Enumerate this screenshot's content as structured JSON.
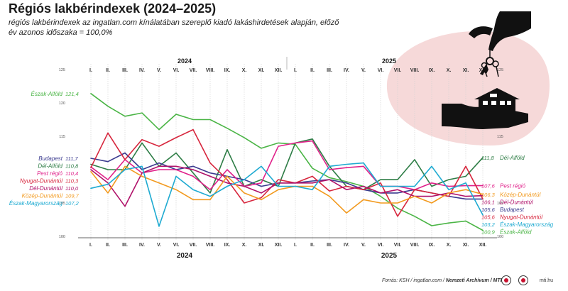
{
  "title": "Régiós lakbérindexek (2024–2025)",
  "subtitle": "régiós lakbérindexek az ingatlan.com kínálatában szereplő kiadó lakáshirdetések alapján, előző év azonos időszaka = 100,0%",
  "footer": {
    "source_prefix": "Forrás: KSH / ingatlan.com / ",
    "source_bold": "Nemzeti Archívum / MTI",
    "site": "mti.hu"
  },
  "colors": {
    "background_blob": "#f6d9d9",
    "grid": "#cccccc",
    "axis": "#333333"
  },
  "icons": [
    "hand-with-keys-icon",
    "hand-holding-house-icon"
  ],
  "chart_data": {
    "type": "line",
    "grid": "vertical",
    "years": [
      "2024",
      "2025"
    ],
    "month_labels": [
      "I.",
      "II.",
      "III.",
      "IV.",
      "V.",
      "VI.",
      "VII.",
      "VIII.",
      "IX.",
      "X.",
      "XI.",
      "XII.",
      "I.",
      "II.",
      "III.",
      "IV.",
      "V.",
      "VI.",
      "VII.",
      "VIII.",
      "IX.",
      "X.",
      "XI.",
      "XII."
    ],
    "y_ticks": [
      {
        "v": 100,
        "label": "100"
      },
      {
        "v": 105,
        "label": "105"
      },
      {
        "v": 115,
        "label": "115"
      },
      {
        "v": 120,
        "label": "120"
      },
      {
        "v": 125,
        "label": "125"
      }
    ],
    "ylim": [
      100,
      125
    ],
    "series": [
      {
        "name": "Észak-Alföld",
        "color": "#4bb546",
        "start_label": "121,4",
        "end_label": "100,9",
        "values": [
          121.4,
          119.5,
          118.0,
          118.5,
          116.0,
          118.3,
          117.5,
          117.5,
          116.2,
          114.8,
          113.2,
          114.0,
          113.8,
          110.2,
          108.8,
          108.2,
          107.5,
          106.0,
          104.2,
          103.0,
          101.6,
          102.0,
          102.3,
          100.9
        ]
      },
      {
        "name": "Dél-Alföld",
        "color": "#2e7d46",
        "start_label": "110,8",
        "end_label": "111,8",
        "values": [
          110.8,
          110.0,
          110.0,
          114.0,
          110.5,
          112.5,
          109.5,
          106.5,
          113.0,
          107.5,
          108.5,
          107.5,
          114.0,
          114.6,
          110.5,
          107.5,
          107.0,
          108.5,
          108.5,
          111.5,
          107.5,
          108.5,
          109.0,
          111.8
        ]
      },
      {
        "name": "Budapest",
        "color": "#3b3b8f",
        "start_label": "111,7",
        "end_label": "105,6",
        "values": [
          111.7,
          111.2,
          112.5,
          110.0,
          111.0,
          110.0,
          110.5,
          109.5,
          109.0,
          108.5,
          107.5,
          108.0,
          108.0,
          108.3,
          108.5,
          108.0,
          107.0,
          106.5,
          106.5,
          107.0,
          106.5,
          106.0,
          105.6,
          105.6
        ]
      },
      {
        "name": "Pest régió",
        "color": "#e0218a",
        "start_label": "110,4",
        "end_label": "107,6",
        "values": [
          110.4,
          108.5,
          111.5,
          109.5,
          110.0,
          110.0,
          109.0,
          107.0,
          110.0,
          107.5,
          108.0,
          113.5,
          114.0,
          114.3,
          110.0,
          110.3,
          110.5,
          107.5,
          107.5,
          107.0,
          108.0,
          107.5,
          107.6,
          107.6
        ]
      },
      {
        "name": "Nyugat-Dunántúl",
        "color": "#d7263d",
        "start_label": "110,3",
        "end_label": "105,6",
        "values": [
          110.3,
          115.5,
          111.5,
          114.5,
          113.5,
          114.8,
          116.0,
          111.0,
          108.5,
          105.0,
          105.8,
          108.5,
          108.0,
          109.0,
          106.8,
          107.5,
          107.0,
          108.0,
          103.0,
          107.0,
          106.5,
          106.0,
          110.5,
          105.6
        ]
      },
      {
        "name": "Dél-Dunántúl",
        "color": "#b0126a",
        "start_label": "110,0",
        "end_label": "106,1",
        "values": [
          110.0,
          108.0,
          104.5,
          109.5,
          110.5,
          110.5,
          110.0,
          109.0,
          108.0,
          107.5,
          106.5,
          108.0,
          108.0,
          108.0,
          108.5,
          107.0,
          107.5,
          106.5,
          107.0,
          106.0,
          106.0,
          106.5,
          106.0,
          106.1
        ]
      },
      {
        "name": "Közép-Dunántúl",
        "color": "#f29a1f",
        "start_label": "109,7",
        "end_label": "106,3",
        "values": [
          109.7,
          106.5,
          110.5,
          109.0,
          108.0,
          107.0,
          105.5,
          105.5,
          109.0,
          106.5,
          105.5,
          107.0,
          107.5,
          107.5,
          106.0,
          103.5,
          105.5,
          105.0,
          105.0,
          106.0,
          105.0,
          106.5,
          107.0,
          106.3
        ]
      },
      {
        "name": "Észak-Magyarország",
        "color": "#1eaad1",
        "start_label": "107,2",
        "end_label": "103,2",
        "values": [
          107.2,
          107.8,
          110.0,
          110.5,
          101.5,
          109.0,
          107.0,
          106.0,
          107.5,
          108.5,
          110.5,
          107.5,
          107.5,
          107.0,
          110.5,
          110.8,
          111.0,
          107.5,
          107.5,
          107.5,
          110.5,
          107.0,
          108.0,
          103.2
        ]
      }
    ]
  }
}
